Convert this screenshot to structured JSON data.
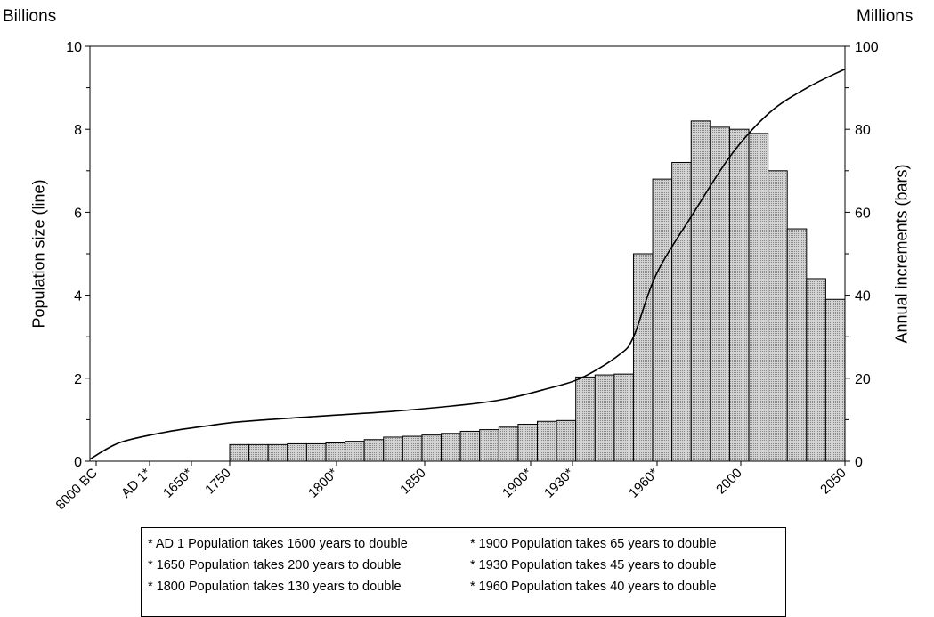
{
  "chart_data": {
    "type": "bar+line",
    "left_axis": {
      "unit": "Billions",
      "label": "Population size (line)",
      "range": [
        0,
        10
      ],
      "ticks": [
        "0",
        "2",
        "4",
        "6",
        "8",
        "10"
      ]
    },
    "right_axis": {
      "unit": "Millions",
      "label": "Annual increments (bars)",
      "range": [
        0,
        100
      ],
      "ticks": [
        "0",
        "20",
        "40",
        "60",
        "80",
        "100"
      ]
    },
    "x_tick_labels": [
      "8000 BC",
      "AD 1*",
      "1650*",
      "1750",
      "1800*",
      "1850",
      "1900*",
      "1930*",
      "1960*",
      "2000",
      "2050"
    ],
    "bars": {
      "name": "Annual increments (bars)",
      "color": "#c8c8c8",
      "values": [
        4,
        4,
        4,
        4.2,
        4.2,
        4.4,
        4.8,
        5.2,
        5.8,
        6,
        6.3,
        6.7,
        7.2,
        7.6,
        8.2,
        8.9,
        9.6,
        9.8,
        20.3,
        20.8,
        21,
        50,
        68,
        72,
        82,
        80.5,
        80,
        79,
        70,
        56,
        44,
        39
      ]
    },
    "line": {
      "name": "Population size (line)",
      "x": [
        0,
        0.04,
        0.1,
        0.155,
        0.2,
        0.3,
        0.4,
        0.5,
        0.55,
        0.6,
        0.65,
        0.7,
        0.72,
        0.75,
        0.8,
        0.85,
        0.9,
        0.95,
        1.0
      ],
      "values": [
        0.05,
        0.45,
        0.7,
        0.85,
        0.95,
        1.08,
        1.2,
        1.37,
        1.5,
        1.72,
        2.0,
        2.55,
        3.0,
        4.5,
        6.0,
        7.4,
        8.4,
        9.0,
        9.45
      ]
    }
  },
  "legend": {
    "items": [
      "*  AD 1 Population takes 1600 years to double",
      "* 1900 Population takes 65 years to double",
      "* 1650 Population takes 200 years to double",
      "* 1930 Population takes 45 years to double",
      "* 1800 Population takes 130 years to double",
      "* 1960 Population takes 40 years to double"
    ]
  }
}
